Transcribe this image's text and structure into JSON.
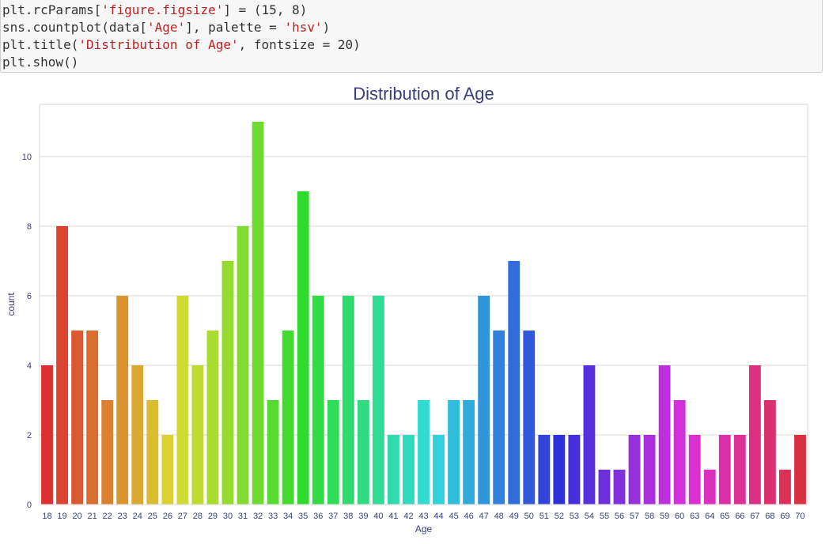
{
  "code_cell": {
    "lines": [
      [
        "plt.rcParams[",
        "'figure.figsize'",
        "] = (15, 8)"
      ],
      [
        "sns.countplot(data[",
        "'Age'",
        "], palette = ",
        "'hsv'",
        ")"
      ],
      [
        "plt.title(",
        "'Distribution of Age'",
        ", fontsize = 20)"
      ],
      [
        "plt.show()"
      ]
    ]
  },
  "chart_data": {
    "type": "bar",
    "title": "Distribution of Age",
    "xlabel": "Age",
    "ylabel": "count",
    "ylim": [
      0,
      11.5
    ],
    "yticks": [
      0,
      2,
      4,
      6,
      8,
      10
    ],
    "grid": "horizontal",
    "palette": "hsv",
    "categories": [
      "18",
      "19",
      "20",
      "21",
      "22",
      "23",
      "24",
      "25",
      "26",
      "27",
      "28",
      "29",
      "30",
      "31",
      "32",
      "33",
      "34",
      "35",
      "36",
      "37",
      "38",
      "39",
      "40",
      "41",
      "42",
      "43",
      "44",
      "45",
      "46",
      "47",
      "48",
      "49",
      "50",
      "51",
      "52",
      "53",
      "54",
      "55",
      "56",
      "57",
      "58",
      "59",
      "60",
      "63",
      "64",
      "65",
      "66",
      "67",
      "68",
      "69",
      "70"
    ],
    "values": [
      4,
      8,
      5,
      5,
      3,
      6,
      4,
      3,
      2,
      6,
      4,
      5,
      7,
      8,
      11,
      3,
      5,
      9,
      6,
      3,
      6,
      3,
      6,
      2,
      2,
      3,
      2,
      3,
      3,
      6,
      5,
      7,
      5,
      2,
      2,
      2,
      4,
      1,
      1,
      2,
      2,
      4,
      3,
      2,
      1,
      2,
      2,
      4,
      3,
      1,
      2
    ]
  }
}
